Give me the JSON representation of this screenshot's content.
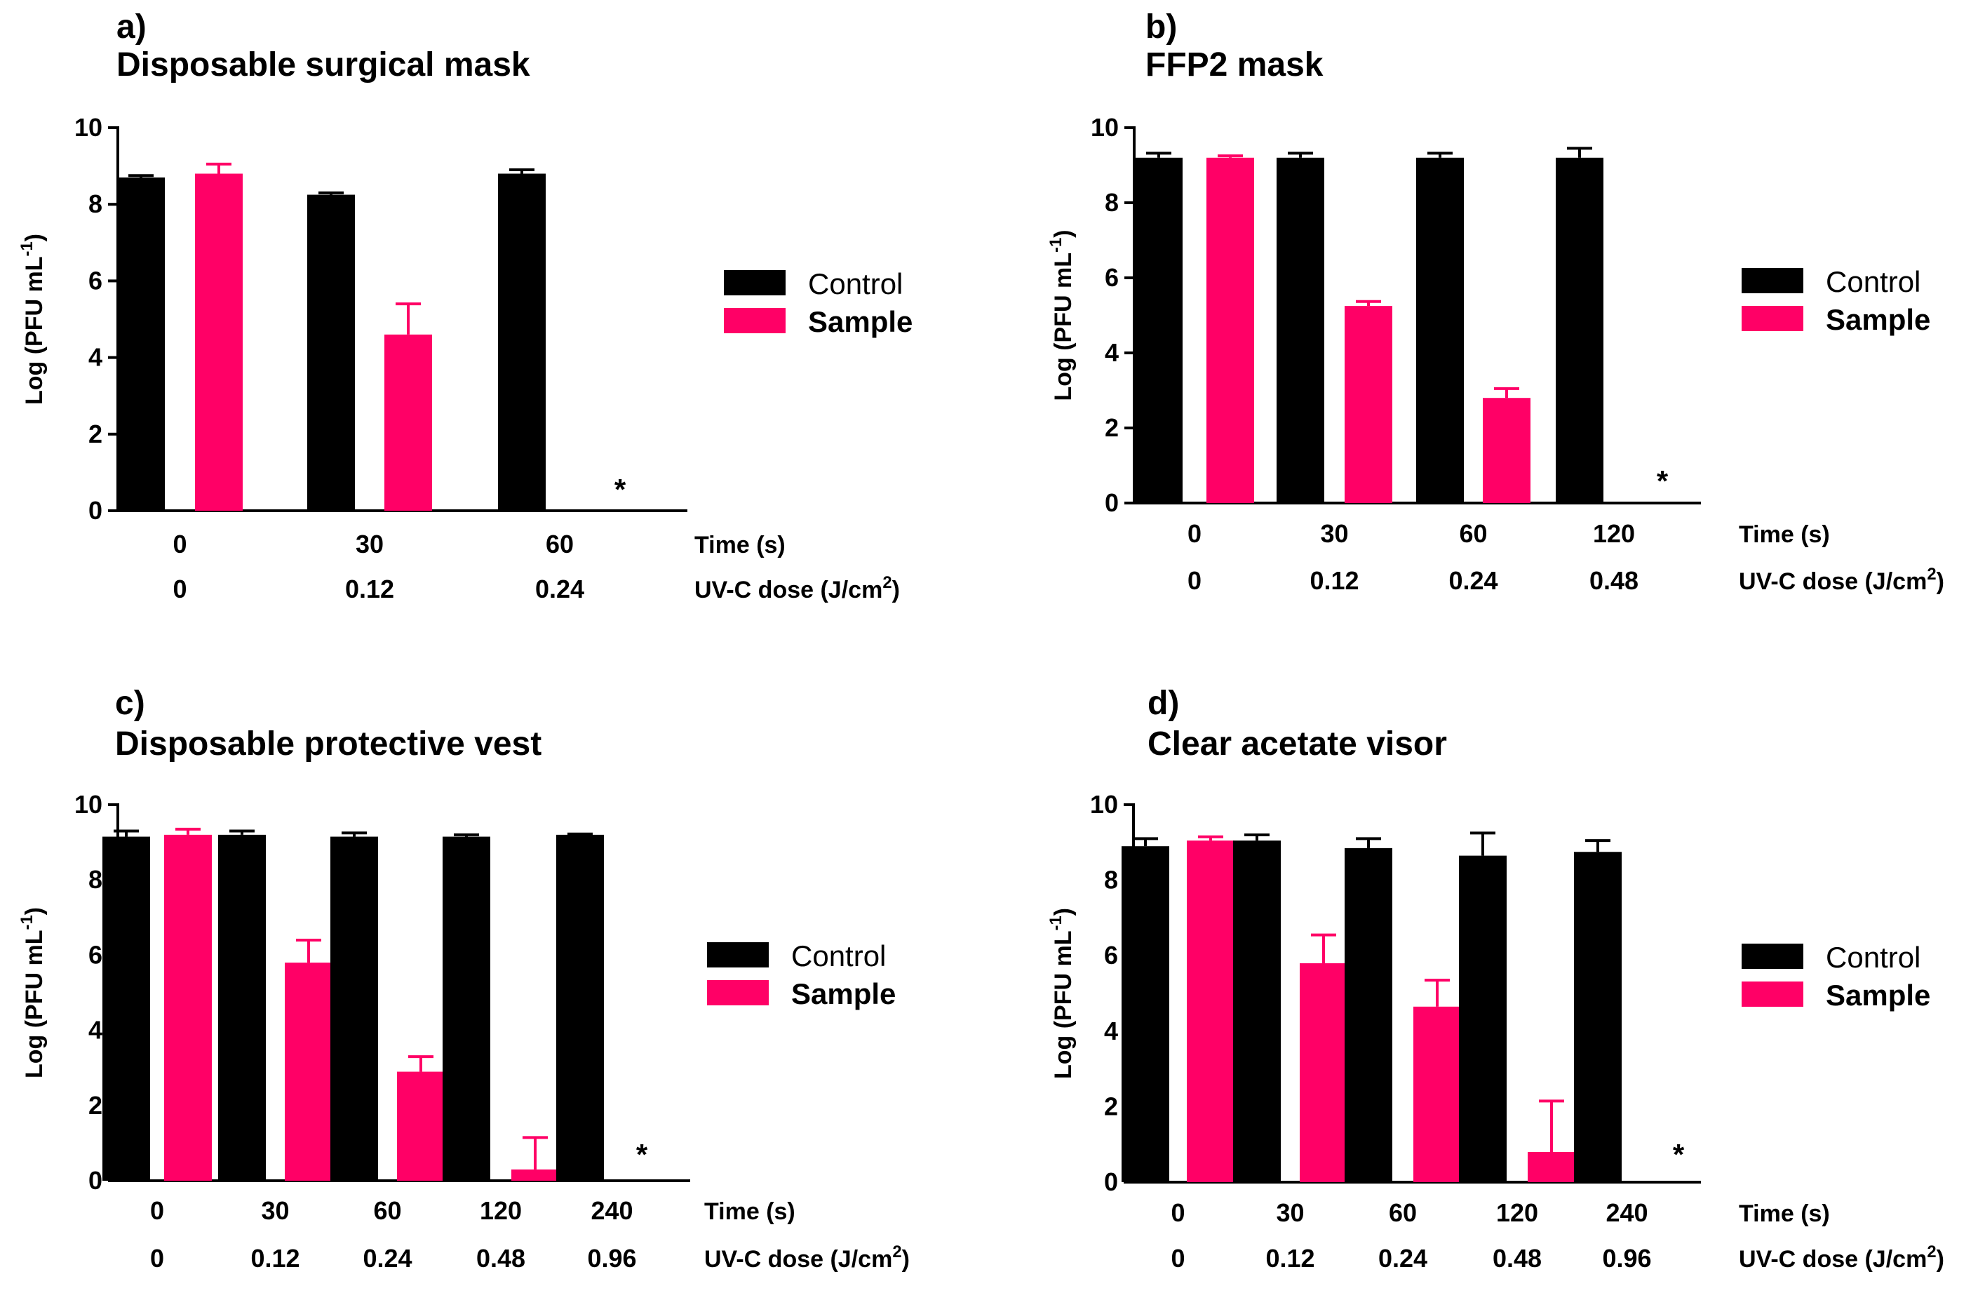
{
  "colors": {
    "control": "#000000",
    "sample": "#FF0066",
    "axis": "#000000"
  },
  "chart_data": [
    {
      "type": "bar",
      "panel_label": "a)",
      "title": "Disposable surgical mask",
      "ylabel_main": "Log (PFU mL",
      "ylabel_sup": "-1",
      "ylabel_end": ")",
      "ylim": [
        0,
        10
      ],
      "yticks": [
        "0",
        "2",
        "4",
        "6",
        "8",
        "10"
      ],
      "time_label": "Time (s)",
      "dose_label_main": "UV-C dose (J/cm",
      "dose_label_sup": "2",
      "dose_label_end": ")",
      "categories": [
        "0",
        "30",
        "60"
      ],
      "doses": [
        "0",
        "0.12",
        "0.24"
      ],
      "legend": [
        "Control",
        "Sample"
      ],
      "series": [
        {
          "name": "Control",
          "values": [
            8.7,
            8.25,
            8.8
          ],
          "errors": [
            0.05,
            0.05,
            0.1
          ]
        },
        {
          "name": "Sample",
          "values": [
            8.8,
            4.6,
            null
          ],
          "errors": [
            0.25,
            0.8,
            null
          ]
        }
      ],
      "annotations": [
        {
          "text": "*",
          "category": 2
        }
      ]
    },
    {
      "type": "bar",
      "panel_label": "b)",
      "title": "FFP2 mask",
      "ylabel_main": "Log (PFU mL",
      "ylabel_sup": "-1",
      "ylabel_end": ")",
      "ylim": [
        0,
        10
      ],
      "yticks": [
        "0",
        "2",
        "4",
        "6",
        "8",
        "10"
      ],
      "time_label": "Time (s)",
      "dose_label_main": "UV-C dose (J/cm",
      "dose_label_sup": "2",
      "dose_label_end": ")",
      "categories": [
        "0",
        "30",
        "60",
        "120"
      ],
      "doses": [
        "0",
        "0.12",
        "0.24",
        "0.48"
      ],
      "legend": [
        "Control",
        "Sample"
      ],
      "series": [
        {
          "name": "Control",
          "values": [
            9.2,
            9.2,
            9.2,
            9.2
          ],
          "errors": [
            0.12,
            0.12,
            0.12,
            0.25
          ]
        },
        {
          "name": "Sample",
          "values": [
            9.2,
            5.25,
            2.8,
            null
          ],
          "errors": [
            0.05,
            0.12,
            0.25,
            null
          ]
        }
      ],
      "annotations": [
        {
          "text": "*",
          "category": 3
        }
      ]
    },
    {
      "type": "bar",
      "panel_label": "c)",
      "title": "Disposable protective vest",
      "ylabel_main": "Log (PFU mL",
      "ylabel_sup": "-1",
      "ylabel_end": ")",
      "ylim": [
        0,
        10
      ],
      "yticks": [
        "0",
        "2",
        "4",
        "6",
        "8",
        "10"
      ],
      "time_label": "Time (s)",
      "dose_label_main": "UV-C dose (J/cm",
      "dose_label_sup": "2",
      "dose_label_end": ")",
      "categories": [
        "0",
        "30",
        "60",
        "120",
        "240"
      ],
      "doses": [
        "0",
        "0.12",
        "0.24",
        "0.48",
        "0.96"
      ],
      "legend": [
        "Control",
        "Sample"
      ],
      "series": [
        {
          "name": "Control",
          "values": [
            9.15,
            9.2,
            9.15,
            9.15,
            9.2
          ],
          "errors": [
            0.15,
            0.1,
            0.1,
            0.05,
            0.02
          ]
        },
        {
          "name": "Sample",
          "values": [
            9.2,
            5.8,
            2.9,
            0.3,
            null
          ],
          "errors": [
            0.15,
            0.6,
            0.4,
            0.85,
            null
          ]
        }
      ],
      "annotations": [
        {
          "text": "*",
          "category": 4
        }
      ]
    },
    {
      "type": "bar",
      "panel_label": "d)",
      "title": "Clear acetate visor",
      "ylabel_main": "Log (PFU mL",
      "ylabel_sup": "-1",
      "ylabel_end": ")",
      "ylim": [
        0,
        10
      ],
      "yticks": [
        "0",
        "2",
        "4",
        "6",
        "8",
        "10"
      ],
      "time_label": "Time (s)",
      "dose_label_main": "UV-C dose (J/cm",
      "dose_label_sup": "2",
      "dose_label_end": ")",
      "categories": [
        "0",
        "30",
        "60",
        "120",
        "240"
      ],
      "doses": [
        "0",
        "0.12",
        "0.24",
        "0.48",
        "0.96"
      ],
      "legend": [
        "Control",
        "Sample"
      ],
      "series": [
        {
          "name": "Control",
          "values": [
            8.9,
            9.05,
            8.85,
            8.65,
            8.75
          ],
          "errors": [
            0.2,
            0.15,
            0.25,
            0.6,
            0.3
          ]
        },
        {
          "name": "Sample",
          "values": [
            9.05,
            5.8,
            4.65,
            0.8,
            null
          ],
          "errors": [
            0.1,
            0.75,
            0.7,
            1.35,
            null
          ]
        }
      ],
      "annotations": [
        {
          "text": "*",
          "category": 4
        }
      ]
    }
  ]
}
